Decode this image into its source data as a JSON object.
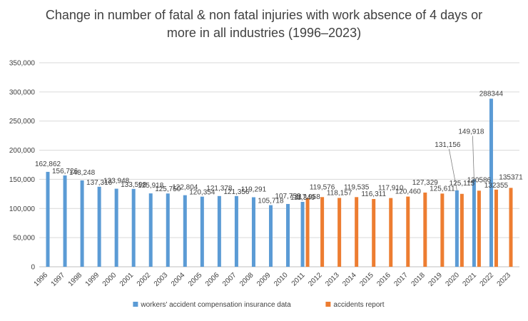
{
  "chart_data": {
    "type": "bar",
    "title_lines": [
      "Change in number of fatal & non fatal injuries with work absence of 4 days or",
      "more in all industries (1996–2023)"
    ],
    "categories": [
      "1996",
      "1997",
      "1998",
      "1999",
      "2000",
      "2001",
      "2002",
      "2003",
      "2004",
      "2005",
      "2006",
      "2007",
      "2008",
      "2009",
      "2010",
      "2011",
      "2012",
      "2013",
      "2014",
      "2015",
      "2016",
      "2017",
      "2018",
      "2019",
      "2020",
      "2021",
      "2022",
      "2023"
    ],
    "ylim": [
      0,
      350000
    ],
    "yticks": [
      0,
      50000,
      100000,
      150000,
      200000,
      250000,
      300000,
      350000
    ],
    "ytick_labels": [
      "0",
      "50,000",
      "100,000",
      "150,000",
      "200,000",
      "250,000",
      "300,000",
      "350,000"
    ],
    "grid": true,
    "legend_position": "bottom",
    "series": [
      {
        "name": "workers' accident compensation insurance data",
        "color": "#5b9bd5",
        "values": [
          162862,
          156726,
          148248,
          137316,
          133948,
          133598,
          125918,
          125750,
          122804,
          120354,
          121378,
          121356,
          119291,
          105718,
          107759,
          111349,
          null,
          null,
          null,
          null,
          null,
          null,
          null,
          null,
          131156,
          149918,
          288344,
          null
        ],
        "labels": [
          "162,862",
          "156,726",
          "148,248",
          "137,316",
          "133,948",
          "133,598",
          "125,918",
          "125,750",
          "122,804",
          "120,354",
          "121,378",
          "121,356",
          "119,291",
          "105,718",
          "107,759",
          "111,349",
          null,
          null,
          null,
          null,
          null,
          null,
          null,
          null,
          "131,156",
          "149,918",
          "288344",
          null
        ]
      },
      {
        "name": "accidents report",
        "color": "#ed7d31",
        "values": [
          null,
          null,
          null,
          null,
          null,
          null,
          null,
          null,
          null,
          null,
          null,
          null,
          null,
          null,
          null,
          117958,
          119576,
          118157,
          119535,
          116311,
          117910,
          120460,
          127329,
          125611,
          125115,
          130586,
          132355,
          135371
        ],
        "labels": [
          null,
          null,
          null,
          null,
          null,
          null,
          null,
          null,
          null,
          null,
          null,
          null,
          null,
          null,
          null,
          "117,958",
          "119,576",
          "118,157",
          "119,535",
          "116,311",
          "117,910",
          "120,460",
          "127,329",
          "125,611",
          "125,115",
          "130586",
          "132355",
          "135371"
        ]
      }
    ]
  }
}
